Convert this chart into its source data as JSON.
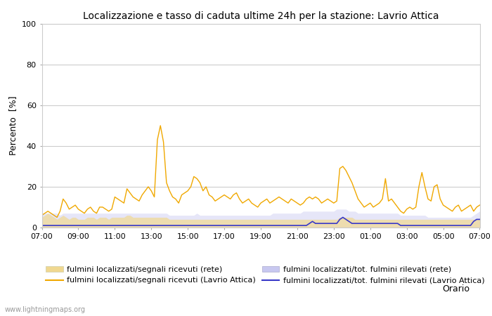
{
  "title": "Localizzazione e tasso di caduta ultime 24h per la stazione: Lavrio Attica",
  "ylabel": "Percento  [%]",
  "xlabel": "Orario",
  "ylim": [
    0,
    100
  ],
  "yticks": [
    0,
    20,
    40,
    60,
    80,
    100
  ],
  "watermark": "www.lightningmaps.org",
  "x_labels": [
    "07:00",
    "09:00",
    "11:00",
    "13:00",
    "15:00",
    "17:00",
    "19:00",
    "21:00",
    "23:00",
    "01:00",
    "03:00",
    "05:00",
    "07:00"
  ],
  "legend": [
    {
      "label": "fulmini localizzati/segnali ricevuti (rete)",
      "type": "fill",
      "color": "#f5dfa0"
    },
    {
      "label": "fulmini localizzati/segnali ricevuti (Lavrio Attica)",
      "type": "line",
      "color": "#f0a800"
    },
    {
      "label": "fulmini localizzati/tot. fulmini rilevati (rete)",
      "type": "fill",
      "color": "#b8b8e8"
    },
    {
      "label": "fulmini localizzati/tot. fulmini rilevati (Lavrio Attica)",
      "type": "line",
      "color": "#3030c0"
    }
  ],
  "n_points": 145,
  "orange_line": [
    6,
    7,
    8,
    7,
    6,
    5,
    8,
    14,
    12,
    9,
    10,
    11,
    9,
    8,
    7,
    9,
    10,
    8,
    7,
    10,
    10,
    9,
    8,
    9,
    15,
    14,
    13,
    12,
    19,
    17,
    15,
    14,
    13,
    16,
    18,
    20,
    18,
    15,
    43,
    50,
    42,
    22,
    18,
    15,
    14,
    12,
    16,
    17,
    18,
    20,
    25,
    24,
    22,
    18,
    20,
    16,
    15,
    13,
    14,
    15,
    16,
    15,
    14,
    16,
    17,
    14,
    12,
    13,
    14,
    12,
    11,
    10,
    12,
    13,
    14,
    12,
    13,
    14,
    15,
    14,
    13,
    12,
    14,
    13,
    12,
    11,
    12,
    14,
    15,
    14,
    15,
    14,
    12,
    13,
    14,
    13,
    12,
    13,
    29,
    30,
    28,
    25,
    22,
    18,
    14,
    12,
    10,
    11,
    12,
    10,
    11,
    12,
    14,
    24,
    13,
    14,
    12,
    10,
    8,
    7,
    9,
    10,
    9,
    10,
    20,
    27,
    20,
    14,
    13,
    20,
    21,
    14,
    11,
    10,
    9,
    8,
    10,
    11,
    8,
    9,
    10,
    11,
    8,
    10,
    11
  ],
  "blue_line": [
    1,
    1,
    1,
    1,
    1,
    1,
    1,
    1,
    1,
    1,
    1,
    1,
    1,
    1,
    1,
    1,
    1,
    1,
    1,
    1,
    1,
    1,
    1,
    1,
    1,
    1,
    1,
    1,
    1,
    1,
    1,
    1,
    1,
    1,
    1,
    1,
    1,
    1,
    1,
    1,
    1,
    1,
    1,
    1,
    1,
    1,
    1,
    1,
    1,
    1,
    1,
    1,
    1,
    1,
    1,
    1,
    1,
    1,
    1,
    1,
    1,
    1,
    1,
    1,
    1,
    1,
    1,
    1,
    1,
    1,
    1,
    1,
    1,
    1,
    1,
    1,
    1,
    1,
    1,
    1,
    1,
    1,
    1,
    1,
    1,
    1,
    1,
    1,
    2,
    3,
    2,
    2,
    2,
    2,
    2,
    2,
    2,
    2,
    4,
    5,
    4,
    3,
    2,
    2,
    2,
    2,
    2,
    2,
    2,
    2,
    2,
    2,
    2,
    2,
    2,
    2,
    2,
    2,
    1,
    1,
    1,
    1,
    1,
    1,
    1,
    1,
    1,
    1,
    1,
    1,
    1,
    1,
    1,
    1,
    1,
    1,
    1,
    1,
    1,
    1,
    1,
    1,
    3,
    4,
    4
  ],
  "fill_orange": [
    5,
    6,
    7,
    6,
    5,
    4,
    5,
    6,
    5,
    4,
    5,
    5,
    4,
    4,
    4,
    5,
    5,
    5,
    4,
    5,
    5,
    5,
    4,
    5,
    5,
    5,
    5,
    5,
    6,
    6,
    5,
    5,
    5,
    5,
    5,
    5,
    5,
    5,
    5,
    5,
    5,
    5,
    4,
    4,
    4,
    4,
    4,
    4,
    4,
    4,
    4,
    4,
    4,
    4,
    4,
    4,
    4,
    4,
    4,
    4,
    4,
    4,
    4,
    4,
    4,
    4,
    4,
    4,
    4,
    4,
    4,
    4,
    4,
    4,
    4,
    4,
    4,
    4,
    4,
    4,
    4,
    4,
    4,
    4,
    4,
    4,
    4,
    4,
    4,
    4,
    4,
    4,
    4,
    4,
    4,
    4,
    4,
    4,
    5,
    5,
    5,
    5,
    5,
    4,
    4,
    4,
    4,
    4,
    4,
    4,
    4,
    4,
    4,
    4,
    4,
    4,
    4,
    4,
    4,
    4,
    4,
    4,
    4,
    4,
    4,
    4,
    4,
    4,
    4,
    4,
    4,
    4,
    4,
    4,
    4,
    4,
    4,
    4,
    4,
    4,
    4,
    4,
    4,
    4,
    4
  ],
  "fill_blue": [
    7,
    7,
    7,
    7,
    7,
    7,
    6,
    7,
    7,
    7,
    7,
    7,
    7,
    7,
    7,
    7,
    7,
    7,
    7,
    7,
    7,
    7,
    7,
    7,
    7,
    7,
    7,
    7,
    7,
    7,
    7,
    7,
    7,
    7,
    7,
    7,
    7,
    7,
    7,
    7,
    7,
    7,
    6,
    6,
    6,
    6,
    6,
    6,
    6,
    6,
    6,
    7,
    6,
    6,
    6,
    6,
    6,
    6,
    6,
    6,
    6,
    6,
    6,
    6,
    6,
    6,
    6,
    6,
    6,
    6,
    6,
    6,
    6,
    6,
    6,
    6,
    7,
    7,
    7,
    7,
    7,
    7,
    7,
    7,
    7,
    7,
    8,
    8,
    8,
    8,
    8,
    8,
    8,
    8,
    8,
    8,
    8,
    9,
    9,
    9,
    9,
    8,
    8,
    8,
    7,
    7,
    7,
    7,
    7,
    7,
    7,
    7,
    7,
    7,
    7,
    7,
    7,
    7,
    6,
    6,
    6,
    6,
    6,
    6,
    6,
    6,
    6,
    5,
    5,
    5,
    5,
    5,
    5,
    5,
    5,
    5,
    5,
    5,
    5,
    5,
    5,
    5,
    6,
    7,
    8
  ],
  "fill_alpha_blue": 0.45,
  "fill_alpha_orange": 0.7,
  "bg_color": "#ffffff",
  "plot_bg_color": "#ffffff",
  "spine_color": "#cccccc",
  "grid_color": "#cccccc",
  "tick_label_size": 8,
  "title_fontsize": 10,
  "ylabel_fontsize": 9,
  "legend_fontsize": 8
}
